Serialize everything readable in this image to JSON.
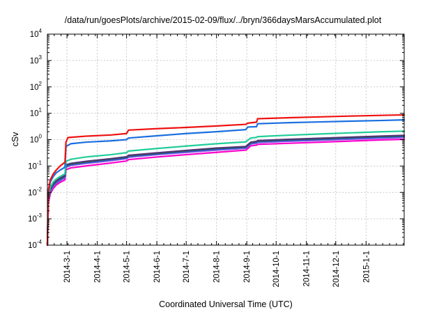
{
  "chart_data": {
    "type": "line",
    "title": "/data/run/goesPlots/archive/2015-02-09/flux/../bryn/366daysMarsAccumulated.plot",
    "xlabel": "Coordinated Universal Time (UTC)",
    "ylabel": "cSv",
    "yscale": "log",
    "ylim": [
      0.0001,
      10000
    ],
    "xlim": [
      "2014-02-09",
      "2015-02-09"
    ],
    "grid": true,
    "x_ticks": [
      {
        "date": "2014-03-01",
        "label": "2014-3-1"
      },
      {
        "date": "2014-04-01",
        "label": "2014-4-1"
      },
      {
        "date": "2014-05-01",
        "label": "2014-5-1"
      },
      {
        "date": "2014-06-01",
        "label": "2014-6-1"
      },
      {
        "date": "2014-07-01",
        "label": "2014-7-1"
      },
      {
        "date": "2014-08-01",
        "label": "2014-8-1"
      },
      {
        "date": "2014-09-01",
        "label": "2014-9-1"
      },
      {
        "date": "2014-10-01",
        "label": "2014-10-1"
      },
      {
        "date": "2014-11-01",
        "label": "2014-11-1"
      },
      {
        "date": "2014-12-01",
        "label": "2014-12-1"
      },
      {
        "date": "2015-01-01",
        "label": "2015-1-1"
      }
    ],
    "y_ticks": [
      {
        "value": 0.0001,
        "base": "10",
        "exp": "-4"
      },
      {
        "value": 0.001,
        "base": "10",
        "exp": "-3"
      },
      {
        "value": 0.01,
        "base": "10",
        "exp": "-2"
      },
      {
        "value": 0.1,
        "base": "10",
        "exp": "-1"
      },
      {
        "value": 1,
        "base": "10",
        "exp": "0"
      },
      {
        "value": 10,
        "base": "10",
        "exp": "1"
      },
      {
        "value": 100,
        "base": "10",
        "exp": "2"
      },
      {
        "value": 1000,
        "base": "10",
        "exp": "3"
      },
      {
        "value": 10000,
        "base": "10",
        "exp": "4"
      }
    ],
    "series": [
      {
        "color": "#ff00cc",
        "points": [
          [
            "2014-02-09",
            0.0001
          ],
          [
            "2014-02-10",
            0.004
          ],
          [
            "2014-02-12",
            0.009
          ],
          [
            "2014-02-15",
            0.014
          ],
          [
            "2014-02-18",
            0.019
          ],
          [
            "2014-02-22",
            0.024
          ],
          [
            "2014-02-27",
            0.03
          ],
          [
            "2014-02-28",
            0.072
          ],
          [
            "2014-03-05",
            0.085
          ],
          [
            "2014-03-20",
            0.1
          ],
          [
            "2014-04-15",
            0.13
          ],
          [
            "2014-05-01",
            0.155
          ],
          [
            "2014-05-03",
            0.175
          ],
          [
            "2014-06-01",
            0.22
          ],
          [
            "2014-07-01",
            0.27
          ],
          [
            "2014-08-01",
            0.33
          ],
          [
            "2014-08-31",
            0.4
          ],
          [
            "2014-09-02",
            0.46
          ],
          [
            "2014-09-05",
            0.58
          ],
          [
            "2014-09-11",
            0.62
          ],
          [
            "2014-09-12",
            0.66
          ],
          [
            "2014-10-15",
            0.73
          ],
          [
            "2014-11-15",
            0.8
          ],
          [
            "2014-12-15",
            0.88
          ],
          [
            "2015-01-15",
            0.97
          ],
          [
            "2015-02-09",
            1.03
          ]
        ]
      },
      {
        "color": "#7755dd",
        "points": [
          [
            "2014-02-09",
            0.0001
          ],
          [
            "2014-02-10",
            0.005
          ],
          [
            "2014-02-12",
            0.011
          ],
          [
            "2014-02-15",
            0.017
          ],
          [
            "2014-02-18",
            0.022
          ],
          [
            "2014-02-22",
            0.028
          ],
          [
            "2014-02-27",
            0.036
          ],
          [
            "2014-02-28",
            0.09
          ],
          [
            "2014-03-05",
            0.105
          ],
          [
            "2014-03-20",
            0.125
          ],
          [
            "2014-04-15",
            0.16
          ],
          [
            "2014-05-01",
            0.19
          ],
          [
            "2014-05-03",
            0.215
          ],
          [
            "2014-06-01",
            0.27
          ],
          [
            "2014-07-01",
            0.33
          ],
          [
            "2014-08-01",
            0.4
          ],
          [
            "2014-08-31",
            0.47
          ],
          [
            "2014-09-02",
            0.54
          ],
          [
            "2014-09-05",
            0.68
          ],
          [
            "2014-09-11",
            0.73
          ],
          [
            "2014-09-12",
            0.78
          ],
          [
            "2014-10-15",
            0.87
          ],
          [
            "2014-11-15",
            0.95
          ],
          [
            "2014-12-15",
            1.04
          ],
          [
            "2015-01-15",
            1.14
          ],
          [
            "2015-02-09",
            1.22
          ]
        ]
      },
      {
        "color": "#3355ff",
        "points": [
          [
            "2014-02-09",
            0.0001
          ],
          [
            "2014-02-10",
            0.0055
          ],
          [
            "2014-02-12",
            0.012
          ],
          [
            "2014-02-15",
            0.019
          ],
          [
            "2014-02-18",
            0.025
          ],
          [
            "2014-02-22",
            0.031
          ],
          [
            "2014-02-27",
            0.04
          ],
          [
            "2014-02-28",
            0.1
          ],
          [
            "2014-03-05",
            0.115
          ],
          [
            "2014-03-20",
            0.137
          ],
          [
            "2014-04-15",
            0.175
          ],
          [
            "2014-05-01",
            0.205
          ],
          [
            "2014-05-03",
            0.235
          ],
          [
            "2014-06-01",
            0.29
          ],
          [
            "2014-07-01",
            0.36
          ],
          [
            "2014-08-01",
            0.44
          ],
          [
            "2014-08-31",
            0.51
          ],
          [
            "2014-09-02",
            0.59
          ],
          [
            "2014-09-05",
            0.74
          ],
          [
            "2014-09-11",
            0.8
          ],
          [
            "2014-09-12",
            0.85
          ],
          [
            "2014-10-15",
            0.95
          ],
          [
            "2014-11-15",
            1.04
          ],
          [
            "2014-12-15",
            1.14
          ],
          [
            "2015-01-15",
            1.25
          ],
          [
            "2015-02-09",
            1.33
          ]
        ]
      },
      {
        "color": "#007733",
        "points": [
          [
            "2014-02-09",
            0.0001
          ],
          [
            "2014-02-10",
            0.006
          ],
          [
            "2014-02-12",
            0.013
          ],
          [
            "2014-02-15",
            0.02
          ],
          [
            "2014-02-18",
            0.026
          ],
          [
            "2014-02-22",
            0.033
          ],
          [
            "2014-02-27",
            0.042
          ],
          [
            "2014-02-28",
            0.105
          ],
          [
            "2014-03-05",
            0.12
          ],
          [
            "2014-03-20",
            0.143
          ],
          [
            "2014-04-15",
            0.183
          ],
          [
            "2014-05-01",
            0.215
          ],
          [
            "2014-05-03",
            0.245
          ],
          [
            "2014-06-01",
            0.3
          ],
          [
            "2014-07-01",
            0.375
          ],
          [
            "2014-08-01",
            0.46
          ],
          [
            "2014-08-31",
            0.53
          ],
          [
            "2014-09-02",
            0.61
          ],
          [
            "2014-09-05",
            0.77
          ],
          [
            "2014-09-11",
            0.83
          ],
          [
            "2014-09-12",
            0.88
          ],
          [
            "2014-10-15",
            0.99
          ],
          [
            "2014-11-15",
            1.08
          ],
          [
            "2014-12-15",
            1.19
          ],
          [
            "2015-01-15",
            1.3
          ],
          [
            "2015-02-09",
            1.38
          ]
        ]
      },
      {
        "color": "#553377",
        "points": [
          [
            "2014-02-09",
            0.0001
          ],
          [
            "2014-02-10",
            0.0065
          ],
          [
            "2014-02-12",
            0.014
          ],
          [
            "2014-02-15",
            0.021
          ],
          [
            "2014-02-18",
            0.027
          ],
          [
            "2014-02-22",
            0.035
          ],
          [
            "2014-02-27",
            0.044
          ],
          [
            "2014-02-28",
            0.11
          ],
          [
            "2014-03-05",
            0.126
          ],
          [
            "2014-03-20",
            0.15
          ],
          [
            "2014-04-15",
            0.19
          ],
          [
            "2014-05-01",
            0.225
          ],
          [
            "2014-05-03",
            0.255
          ],
          [
            "2014-06-01",
            0.315
          ],
          [
            "2014-07-01",
            0.39
          ],
          [
            "2014-08-01",
            0.48
          ],
          [
            "2014-08-31",
            0.55
          ],
          [
            "2014-09-02",
            0.64
          ],
          [
            "2014-09-05",
            0.8
          ],
          [
            "2014-09-11",
            0.86
          ],
          [
            "2014-09-12",
            0.92
          ],
          [
            "2014-10-15",
            1.03
          ],
          [
            "2014-11-15",
            1.13
          ],
          [
            "2014-12-15",
            1.24
          ],
          [
            "2015-01-15",
            1.36
          ],
          [
            "2015-02-09",
            1.45
          ]
        ]
      },
      {
        "color": "#22cc99",
        "points": [
          [
            "2014-02-09",
            0.0001
          ],
          [
            "2014-02-10",
            0.007
          ],
          [
            "2014-02-12",
            0.016
          ],
          [
            "2014-02-15",
            0.025
          ],
          [
            "2014-02-18",
            0.032
          ],
          [
            "2014-02-22",
            0.04
          ],
          [
            "2014-02-27",
            0.05
          ],
          [
            "2014-02-28",
            0.15
          ],
          [
            "2014-03-05",
            0.18
          ],
          [
            "2014-03-20",
            0.22
          ],
          [
            "2014-04-15",
            0.27
          ],
          [
            "2014-05-01",
            0.32
          ],
          [
            "2014-05-03",
            0.37
          ],
          [
            "2014-06-01",
            0.46
          ],
          [
            "2014-07-01",
            0.57
          ],
          [
            "2014-08-01",
            0.7
          ],
          [
            "2014-08-31",
            0.82
          ],
          [
            "2014-09-02",
            0.95
          ],
          [
            "2014-09-05",
            1.15
          ],
          [
            "2014-09-11",
            1.22
          ],
          [
            "2014-09-12",
            1.3
          ],
          [
            "2014-10-15",
            1.48
          ],
          [
            "2014-11-15",
            1.64
          ],
          [
            "2014-12-15",
            1.8
          ],
          [
            "2015-01-15",
            1.98
          ],
          [
            "2015-02-09",
            2.1
          ]
        ]
      },
      {
        "color": "#1a6fe0",
        "points": [
          [
            "2014-02-09",
            0.0001
          ],
          [
            "2014-02-10",
            0.01
          ],
          [
            "2014-02-12",
            0.025
          ],
          [
            "2014-02-15",
            0.04
          ],
          [
            "2014-02-18",
            0.055
          ],
          [
            "2014-02-22",
            0.07
          ],
          [
            "2014-02-27",
            0.09
          ],
          [
            "2014-02-28",
            0.55
          ],
          [
            "2014-03-05",
            0.7
          ],
          [
            "2014-03-20",
            0.8
          ],
          [
            "2014-04-15",
            0.9
          ],
          [
            "2014-05-01",
            1.0
          ],
          [
            "2014-05-03",
            1.15
          ],
          [
            "2014-06-01",
            1.4
          ],
          [
            "2014-07-01",
            1.7
          ],
          [
            "2014-08-01",
            2.0
          ],
          [
            "2014-08-31",
            2.4
          ],
          [
            "2014-09-02",
            3.0
          ],
          [
            "2014-09-11",
            3.1
          ],
          [
            "2014-09-12",
            4.0
          ],
          [
            "2014-10-15",
            4.4
          ],
          [
            "2014-11-15",
            4.7
          ],
          [
            "2014-12-15",
            5.0
          ],
          [
            "2015-01-15",
            5.3
          ],
          [
            "2015-02-09",
            5.6
          ]
        ]
      },
      {
        "color": "#ee1111",
        "points": [
          [
            "2014-02-09",
            0.0001
          ],
          [
            "2014-02-10",
            0.012
          ],
          [
            "2014-02-12",
            0.03
          ],
          [
            "2014-02-15",
            0.05
          ],
          [
            "2014-02-18",
            0.07
          ],
          [
            "2014-02-22",
            0.1
          ],
          [
            "2014-02-27",
            0.14
          ],
          [
            "2014-02-28",
            0.8
          ],
          [
            "2014-03-02",
            1.2
          ],
          [
            "2014-03-20",
            1.35
          ],
          [
            "2014-04-15",
            1.5
          ],
          [
            "2014-05-01",
            1.7
          ],
          [
            "2014-05-03",
            2.3
          ],
          [
            "2014-06-01",
            2.6
          ],
          [
            "2014-07-01",
            2.9
          ],
          [
            "2014-08-01",
            3.3
          ],
          [
            "2014-08-31",
            3.8
          ],
          [
            "2014-09-02",
            4.2
          ],
          [
            "2014-09-11",
            4.6
          ],
          [
            "2014-09-12",
            6.2
          ],
          [
            "2014-10-15",
            6.8
          ],
          [
            "2014-11-15",
            7.3
          ],
          [
            "2014-12-15",
            7.8
          ],
          [
            "2015-01-15",
            8.3
          ],
          [
            "2015-02-09",
            8.7
          ]
        ]
      }
    ]
  }
}
